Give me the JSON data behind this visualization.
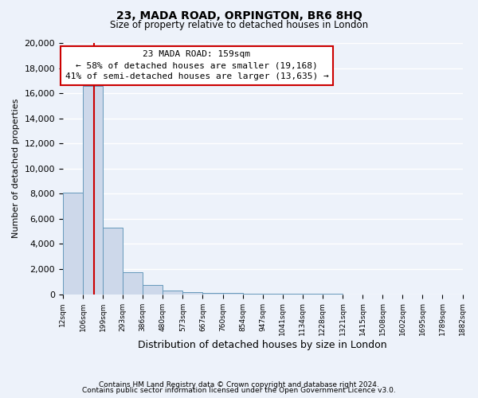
{
  "title": "23, MADA ROAD, ORPINGTON, BR6 8HQ",
  "subtitle": "Size of property relative to detached houses in London",
  "xlabel": "Distribution of detached houses by size in London",
  "ylabel": "Number of detached properties",
  "bar_heights": [
    8100,
    16600,
    5300,
    1750,
    750,
    300,
    150,
    100,
    75,
    50,
    30,
    20,
    15,
    10,
    5,
    3,
    2,
    1,
    1,
    0
  ],
  "bar_labels": [
    "12sqm",
    "106sqm",
    "199sqm",
    "293sqm",
    "386sqm",
    "480sqm",
    "573sqm",
    "667sqm",
    "760sqm",
    "854sqm",
    "947sqm",
    "1041sqm",
    "1134sqm",
    "1228sqm",
    "1321sqm",
    "1415sqm",
    "1508sqm",
    "1602sqm",
    "1695sqm",
    "1789sqm",
    "1882sqm"
  ],
  "bar_color": "#cdd8ea",
  "bar_edge_color": "#6699bb",
  "ylim": [
    0,
    20000
  ],
  "yticks": [
    0,
    2000,
    4000,
    6000,
    8000,
    10000,
    12000,
    14000,
    16000,
    18000,
    20000
  ],
  "annotation_title": "23 MADA ROAD: 159sqm",
  "annotation_line1": "← 58% of detached houses are smaller (19,168)",
  "annotation_line2": "41% of semi-detached houses are larger (13,635) →",
  "footer_line1": "Contains HM Land Registry data © Crown copyright and database right 2024.",
  "footer_line2": "Contains public sector information licensed under the Open Government Licence v3.0.",
  "background_color": "#edf2fa",
  "grid_color": "#ffffff",
  "red_line_color": "#cc0000",
  "annotation_box_edge": "#cc0000"
}
